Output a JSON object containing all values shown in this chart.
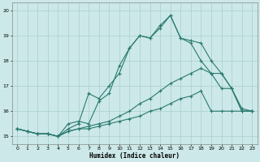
{
  "xlabel": "Humidex (Indice chaleur)",
  "xlim": [
    -0.5,
    23.5
  ],
  "ylim": [
    14.7,
    20.3
  ],
  "xticks": [
    0,
    1,
    2,
    3,
    4,
    5,
    6,
    7,
    8,
    9,
    10,
    11,
    12,
    13,
    14,
    15,
    16,
    17,
    18,
    19,
    20,
    21,
    22,
    23
  ],
  "yticks": [
    15,
    16,
    17,
    18,
    19,
    20
  ],
  "bg_color": "#cce8e8",
  "line_color": "#2a7a6f",
  "grid_color": "#aacfcf",
  "line1_x": [
    0,
    1,
    2,
    3,
    4,
    5,
    6,
    7,
    8,
    9,
    10,
    11,
    12,
    13,
    14,
    15,
    16,
    17,
    18,
    19,
    20,
    21,
    22,
    23
  ],
  "line1_y": [
    15.3,
    15.2,
    15.1,
    15.1,
    15.0,
    15.5,
    15.6,
    15.5,
    16.4,
    16.7,
    17.8,
    18.5,
    19.0,
    18.9,
    19.4,
    19.8,
    18.9,
    18.8,
    18.7,
    18.0,
    17.5,
    16.9,
    16.0,
    16.0
  ],
  "line2_x": [
    0,
    1,
    2,
    3,
    4,
    5,
    6,
    7,
    8,
    9,
    10,
    11,
    12,
    13,
    14,
    15,
    16,
    17,
    18,
    19,
    20,
    21,
    22,
    23
  ],
  "line2_y": [
    15.3,
    15.2,
    15.1,
    15.1,
    15.0,
    15.2,
    15.3,
    15.3,
    15.4,
    15.5,
    15.6,
    15.7,
    15.8,
    16.0,
    16.1,
    16.3,
    16.5,
    16.6,
    16.8,
    16.0,
    16.0,
    16.0,
    16.0,
    16.0
  ],
  "line3_x": [
    0,
    1,
    2,
    3,
    4,
    5,
    6,
    7,
    8,
    9,
    10,
    11,
    12,
    13,
    14,
    15,
    16,
    17,
    18,
    19,
    20,
    21,
    22,
    23
  ],
  "line3_y": [
    15.3,
    15.2,
    15.1,
    15.1,
    15.0,
    15.2,
    15.3,
    15.4,
    15.5,
    15.6,
    15.8,
    16.0,
    16.3,
    16.5,
    16.8,
    17.1,
    17.3,
    17.5,
    17.7,
    17.5,
    17.5,
    16.9,
    16.1,
    16.0
  ],
  "line4_x": [
    0,
    1,
    2,
    3,
    4,
    5,
    6,
    7,
    8,
    9,
    10,
    11,
    12,
    13,
    14,
    15,
    16,
    17,
    18,
    19,
    20,
    21,
    22,
    23
  ],
  "line4_y": [
    15.3,
    15.2,
    15.1,
    15.1,
    15.0,
    15.3,
    15.5,
    16.7,
    16.5,
    17.0,
    17.5,
    18.5,
    19.0,
    18.9,
    19.3,
    19.8,
    18.9,
    18.7,
    18.0,
    17.5,
    16.9,
    16.9,
    16.0,
    16.0
  ]
}
